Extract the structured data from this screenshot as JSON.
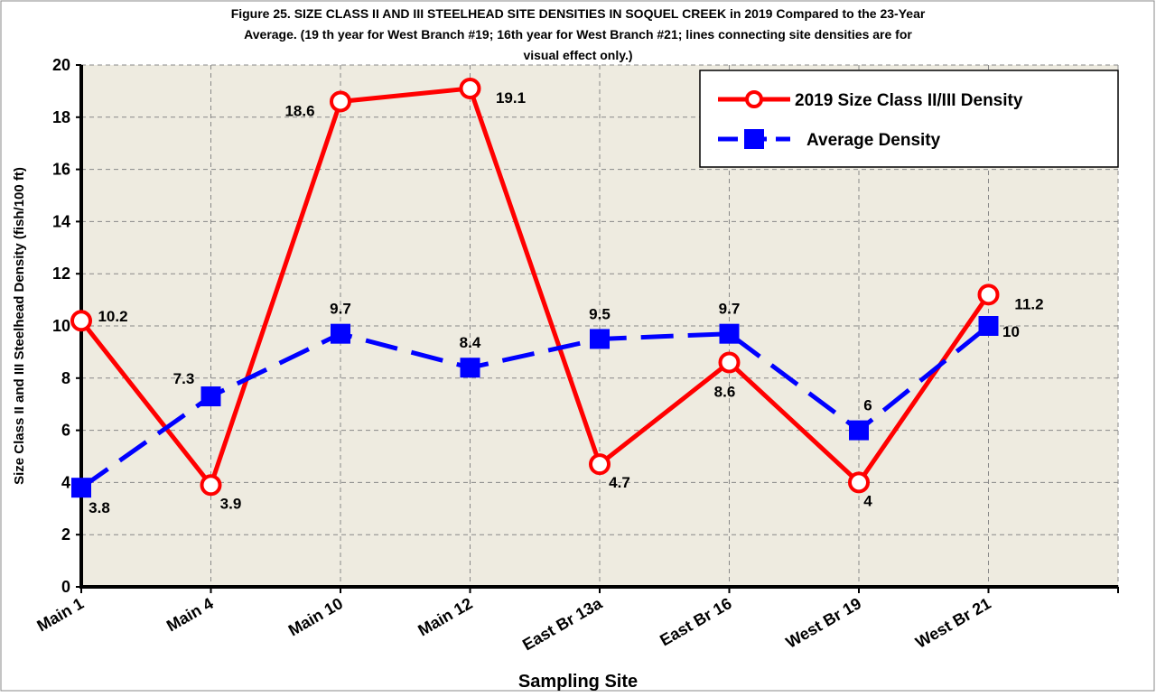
{
  "chart_data": {
    "type": "line",
    "title": [
      "Figure 25. SIZE CLASS II AND III STEELHEAD SITE DENSITIES IN SOQUEL CREEK in 2019 Compared to the 23-Year",
      "Average. (19 th year for West Branch #19; 16th year for West Branch #21; lines connecting site densities are for",
      "visual effect only.)"
    ],
    "x_label": "Sampling Site",
    "y_label": "Size Class II and III Steelhead Density (fish/100 ft)",
    "categories": [
      "Main 1",
      "Main 4",
      "Main 10",
      "Main 12",
      "East Br 13a",
      "East Br 16",
      "West Br 19",
      "West Br 21"
    ],
    "series": [
      {
        "name": "2019 Size Class II/III Density",
        "color": "#ff0000",
        "values": [
          10.2,
          3.9,
          18.6,
          19.1,
          4.7,
          8.6,
          4,
          11.2
        ]
      },
      {
        "name": "Average Density",
        "color": "#0000ff",
        "values": [
          3.8,
          7.3,
          9.7,
          8.4,
          9.5,
          9.7,
          6,
          10
        ]
      }
    ],
    "ylim": [
      0,
      20
    ],
    "yticks": [
      0,
      2,
      4,
      6,
      8,
      10,
      12,
      14,
      16,
      18,
      20
    ],
    "grid": true
  }
}
